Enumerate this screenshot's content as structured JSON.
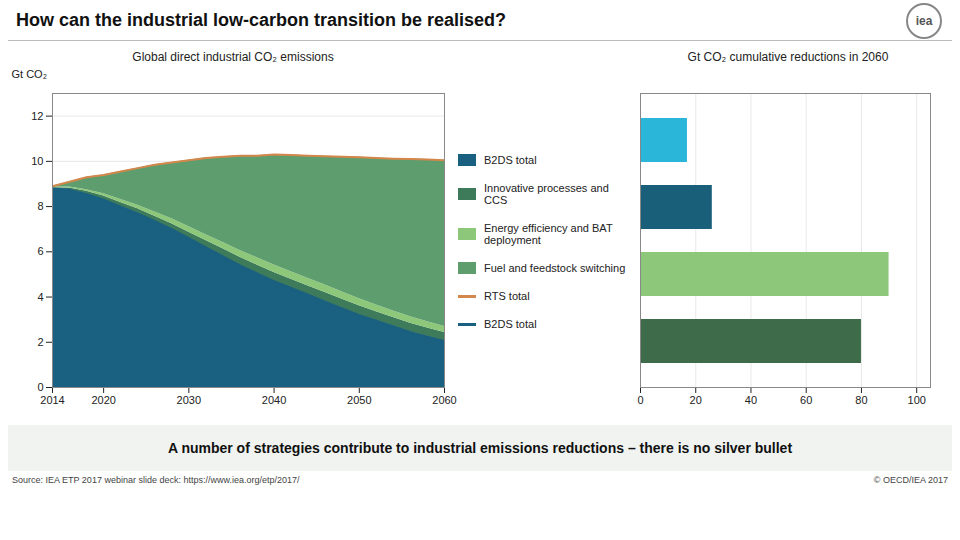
{
  "chart_data": [
    {
      "type": "area",
      "title": "How can the industrial low-carbon transition be realised?",
      "subtitle": "Global direct industrial CO₂ emissions",
      "ylabel": "Gt CO₂",
      "x": [
        2014,
        2016,
        2018,
        2020,
        2022,
        2024,
        2026,
        2028,
        2030,
        2032,
        2034,
        2036,
        2038,
        2040,
        2042,
        2044,
        2046,
        2048,
        2050,
        2052,
        2054,
        2056,
        2058,
        2060
      ],
      "series": [
        {
          "name": "B2DS total",
          "type": "area",
          "color": "#1A6080",
          "values": [
            8.8,
            8.75,
            8.55,
            8.3,
            8.0,
            7.7,
            7.35,
            7.0,
            6.6,
            6.2,
            5.8,
            5.4,
            5.05,
            4.7,
            4.4,
            4.1,
            3.8,
            3.5,
            3.2,
            2.95,
            2.7,
            2.45,
            2.25,
            2.05
          ]
        },
        {
          "name": "Innovative processes and CCS",
          "type": "area",
          "color": "#3E7B5A",
          "values": [
            8.83,
            8.82,
            8.68,
            8.47,
            8.18,
            7.9,
            7.57,
            7.24,
            6.87,
            6.5,
            6.13,
            5.76,
            5.42,
            5.09,
            4.79,
            4.49,
            4.2,
            3.9,
            3.61,
            3.35,
            3.09,
            2.84,
            2.63,
            2.43
          ]
        },
        {
          "name": "Energy efficiency and BAT\ndeployment",
          "type": "area",
          "color": "#8DC87A",
          "values": [
            8.87,
            8.87,
            8.74,
            8.57,
            8.31,
            8.06,
            7.76,
            7.46,
            7.11,
            6.75,
            6.41,
            6.06,
            5.74,
            5.42,
            5.12,
            4.82,
            4.53,
            4.22,
            3.92,
            3.65,
            3.38,
            3.13,
            2.91,
            2.7
          ]
        },
        {
          "name": "Fuel and feedstock switching",
          "type": "area",
          "color": "#5E9E6E",
          "values": [
            8.9,
            9.1,
            9.3,
            9.4,
            9.55,
            9.7,
            9.85,
            9.95,
            10.05,
            10.15,
            10.2,
            10.25,
            10.25,
            10.3,
            10.28,
            10.25,
            10.22,
            10.2,
            10.18,
            10.15,
            10.12,
            10.1,
            10.08,
            10.05
          ]
        },
        {
          "name": "RTS total",
          "type": "line",
          "color": "#D4874B",
          "values": [
            8.9,
            9.1,
            9.3,
            9.4,
            9.55,
            9.7,
            9.85,
            9.95,
            10.05,
            10.15,
            10.2,
            10.25,
            10.25,
            10.3,
            10.28,
            10.25,
            10.22,
            10.2,
            10.18,
            10.15,
            10.12,
            10.1,
            10.08,
            10.05
          ]
        },
        {
          "name": "B2DS total",
          "type": "line",
          "color": "#1A6080",
          "values": [
            8.8,
            8.75,
            8.55,
            8.3,
            8.0,
            7.7,
            7.35,
            7.0,
            6.6,
            6.2,
            5.8,
            5.4,
            5.05,
            4.7,
            4.4,
            4.1,
            3.8,
            3.5,
            3.2,
            2.95,
            2.7,
            2.45,
            2.25,
            2.05
          ]
        }
      ],
      "stacked": false,
      "xlim": [
        2014,
        2060
      ],
      "xticks": [
        2014,
        2020,
        2030,
        2040,
        2050,
        2060
      ],
      "ylim": [
        0,
        13
      ],
      "yticks": [
        0,
        2,
        4,
        6,
        8,
        10,
        12
      ],
      "grid": true,
      "legend": "right",
      "annotations": [
        "A number of strategies contribute to industrial emissions reductions – there is no silver bullet",
        "Source: IEA ETP 2017 webinar slide deck: https://www.iea.org/etp/2017/",
        "© OECD/IEA  2017",
        "iea"
      ]
    },
    {
      "type": "bar",
      "orientation": "horizontal",
      "title": "Gt CO₂ cumulative reductions in 2060",
      "categories": [
        null,
        null,
        null,
        null
      ],
      "values": [
        17,
        26,
        90,
        80
      ],
      "colors": [
        "#29B6D8",
        "#1A5F7A",
        "#8DC87A",
        "#3E6B4A"
      ],
      "xlim": [
        0,
        105
      ],
      "xticks": [
        0,
        20,
        40,
        60,
        80,
        100
      ],
      "grid": true,
      "tick_labels": "x"
    }
  ]
}
